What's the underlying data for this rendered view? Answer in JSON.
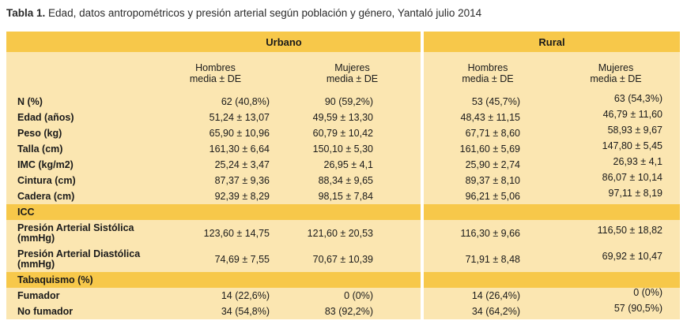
{
  "caption": {
    "label": "Tabla 1.",
    "text": "Edad, datos antropométricos y presión arterial según población y género, Yantaló julio 2014"
  },
  "groups": {
    "urbano": "Urbano",
    "rural": "Rural"
  },
  "subheaders": [
    {
      "line1": "Hombres",
      "line2": "media ± DE"
    },
    {
      "line1": "Mujeres",
      "line2": "media ± DE"
    },
    {
      "line1": "Hombres",
      "line2": "media ± DE"
    },
    {
      "line1": "Mujeres",
      "line2": "media ± DE"
    }
  ],
  "rows": [
    {
      "label": "N (%)",
      "values": [
        "62 (40,8%)",
        "90 (59,2%)",
        "53 (45,7%)",
        "63 (54,3%)"
      ]
    },
    {
      "label": "Edad (años)",
      "values": [
        "51,24 ± 13,07",
        "49,59 ± 13,30",
        "48,43 ± 11,15",
        "46,79 ± 11,60"
      ]
    },
    {
      "label": "Peso (kg)",
      "values": [
        "65,90 ± 10,96",
        "60,79 ± 10,42",
        "67,71 ± 8,60",
        "58,93 ± 9,67"
      ]
    },
    {
      "label": "Talla (cm)",
      "values": [
        "161,30 ± 6,64",
        "150,10 ± 5,30",
        "161,60 ± 5,69",
        "147,80 ± 5,45"
      ]
    },
    {
      "label": "IMC (kg/m2)",
      "values": [
        "25,24 ± 3,47",
        "26,95 ± 4,1",
        "25,90 ± 2,74",
        "26,93 ± 4,1"
      ]
    },
    {
      "label": "Cintura (cm)",
      "values": [
        "87,37 ± 9,36",
        "88,34 ± 9,65",
        "89,37 ± 8,10",
        "86,07 ± 10,14"
      ]
    },
    {
      "label": "Cadera (cm)",
      "values": [
        "92,39 ± 8,29",
        "98,15 ± 7,84",
        "96,21 ± 5,06",
        "97,11 ± 8,19"
      ]
    },
    {
      "label": "ICC",
      "values": [
        "",
        "",
        "",
        ""
      ]
    },
    {
      "label": "Presión Arterial Sistólica (mmHg)",
      "values": [
        "123,60 ± 14,75",
        "121,60 ± 20,53",
        "116,30 ± 9,66",
        "116,50 ± 18,82"
      ]
    },
    {
      "label": "Presión Arterial Diastólica (mmHg)",
      "values": [
        "74,69 ± 7,55",
        "70,67 ± 10,39",
        "71,91 ± 8,48",
        "69,92 ± 10,47"
      ]
    },
    {
      "label": "Tabaquismo (%)",
      "values": [
        "",
        "",
        "",
        ""
      ]
    },
    {
      "label": "Fumador",
      "values": [
        "14 (22,6%)",
        "0 (0%)",
        "14 (26,4%)",
        "0 (0%)"
      ]
    },
    {
      "label": "No fumador",
      "values": [
        "34 (54,8%)",
        "83 (92,2%)",
        "34 (64,2%)",
        "57 (90,5%)"
      ]
    }
  ],
  "colors": {
    "header": "#f7c84a",
    "body": "#fbe6b1"
  }
}
